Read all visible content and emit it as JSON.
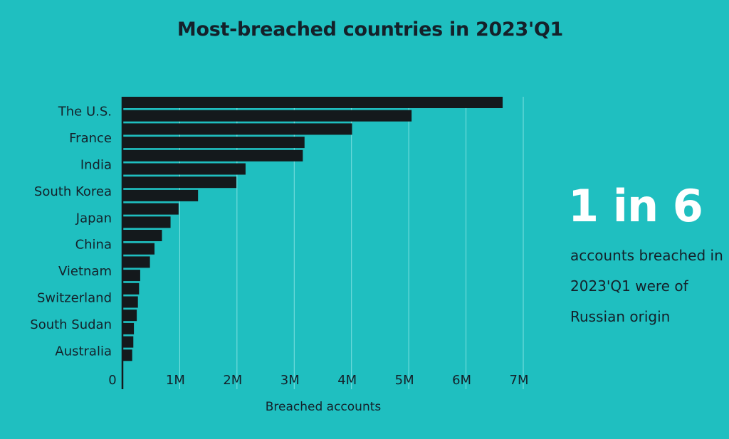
{
  "title": "Most-breached countries in 2023'Q1",
  "callout": {
    "stat": "1 in 6",
    "caption": "accounts breached in 2023'Q1 were of Russian origin"
  },
  "colors": {
    "background": "#1fbfc0",
    "bar": "#14191c",
    "text": "#14212a",
    "gridline": "#7fe0e0",
    "stat": "#ffffff"
  },
  "chart_data": {
    "type": "bar",
    "orientation": "horizontal",
    "title": "Most-breached countries in 2023'Q1",
    "xlabel": "Breached accounts",
    "ylabel": "",
    "xlim": [
      0,
      7000000
    ],
    "x_ticks": [
      0,
      1000000,
      2000000,
      3000000,
      4000000,
      5000000,
      6000000,
      7000000
    ],
    "x_tick_labels": [
      "0",
      "1M",
      "2M",
      "3M",
      "4M",
      "5M",
      "6M",
      "7M"
    ],
    "grid": "vertical",
    "y_tick_labels": [
      "The U.S.",
      "France",
      "India",
      "South Korea",
      "Japan",
      "China",
      "Vietnam",
      "Switzerland",
      "South Sudan",
      "Australia"
    ],
    "values": [
      6640000,
      5050000,
      4010000,
      3180000,
      3150000,
      2150000,
      1990000,
      1320000,
      980000,
      840000,
      690000,
      560000,
      480000,
      310000,
      290000,
      270000,
      250000,
      200000,
      190000,
      170000
    ]
  }
}
